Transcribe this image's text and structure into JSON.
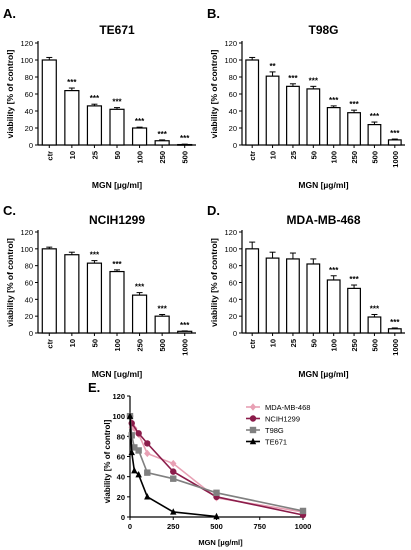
{
  "panels": [
    {
      "letter": "A.",
      "title": "TE671",
      "type": "bar",
      "ylabel": "viability [% of control]",
      "xlabel": "MGN [µg/ml]",
      "ylim": [
        0,
        120
      ],
      "yticks": [
        0,
        20,
        40,
        60,
        80,
        100,
        120
      ],
      "categories": [
        "ctr",
        "10",
        "25",
        "50",
        "100",
        "250",
        "500"
      ],
      "values": [
        100,
        64,
        46,
        42,
        20,
        5,
        0.5
      ],
      "errors": [
        3,
        3,
        2,
        2,
        1,
        1,
        0.5
      ],
      "significance": [
        "",
        "***",
        "***",
        "***",
        "***",
        "***",
        "***"
      ]
    },
    {
      "letter": "B.",
      "title": "T98G",
      "type": "bar",
      "ylabel": "viability [% of control]",
      "xlabel": "MGN [µg/ml]",
      "ylim": [
        0,
        120
      ],
      "yticks": [
        0,
        20,
        40,
        60,
        80,
        100,
        120
      ],
      "categories": [
        "ctr",
        "10",
        "25",
        "50",
        "100",
        "250",
        "500",
        "1000"
      ],
      "values": [
        100,
        81,
        69,
        66,
        44,
        38,
        24,
        6
      ],
      "errors": [
        3,
        5,
        3,
        3,
        2,
        3,
        3,
        1
      ],
      "significance": [
        "",
        "**",
        "***",
        "***",
        "***",
        "***",
        "***",
        "***"
      ]
    },
    {
      "letter": "C.",
      "title": "NCIH1299",
      "type": "bar",
      "ylabel": "viability [% of control]",
      "xlabel": "MGN [ug/ml]",
      "ylim": [
        0,
        120
      ],
      "yticks": [
        0,
        20,
        40,
        60,
        80,
        100,
        120
      ],
      "categories": [
        "ctr",
        "10",
        "50",
        "100",
        "250",
        "500",
        "1000"
      ],
      "values": [
        100,
        93,
        83,
        73,
        45,
        20,
        2
      ],
      "errors": [
        2,
        3,
        3,
        2,
        3,
        2,
        0.5
      ],
      "significance": [
        "",
        "",
        "***",
        "***",
        "***",
        "***",
        "***"
      ]
    },
    {
      "letter": "D.",
      "title": "MDA-MB-468",
      "type": "bar",
      "ylabel": "viability [% of control]",
      "xlabel": "MGN [µg/ml]",
      "ylim": [
        0,
        120
      ],
      "yticks": [
        0,
        20,
        40,
        60,
        80,
        100,
        120
      ],
      "categories": [
        "ctr",
        "10",
        "25",
        "50",
        "100",
        "250",
        "500",
        "1000"
      ],
      "values": [
        100,
        89,
        88,
        82,
        63,
        53,
        19,
        5
      ],
      "errors": [
        8,
        7,
        7,
        6,
        5,
        4,
        3,
        1
      ],
      "significance": [
        "",
        "",
        "",
        "",
        "***",
        "***",
        "***",
        "***"
      ]
    }
  ],
  "line_panel": {
    "letter": "E.",
    "ylabel": "viability [% of control]",
    "xlabel": "MGN [µg/ml]",
    "ylim": [
      0,
      120
    ],
    "xlim": [
      0,
      1000
    ],
    "yticks": [
      0,
      20,
      40,
      60,
      80,
      100,
      120
    ],
    "xticks": [
      0,
      250,
      500,
      750,
      1000
    ],
    "legend_position": "top-right"
  },
  "chart_data": [
    {
      "type": "bar",
      "title": "TE671",
      "xlabel": "MGN [µg/ml]",
      "ylabel": "viability [% of control]",
      "categories": [
        "ctr",
        "10",
        "25",
        "50",
        "100",
        "250",
        "500"
      ],
      "values": [
        100,
        64,
        46,
        42,
        20,
        5,
        0.5
      ],
      "ylim": [
        0,
        120
      ]
    },
    {
      "type": "bar",
      "title": "T98G",
      "xlabel": "MGN [µg/ml]",
      "ylabel": "viability [% of control]",
      "categories": [
        "ctr",
        "10",
        "25",
        "50",
        "100",
        "250",
        "500",
        "1000"
      ],
      "values": [
        100,
        81,
        69,
        66,
        44,
        38,
        24,
        6
      ],
      "ylim": [
        0,
        120
      ]
    },
    {
      "type": "bar",
      "title": "NCIH1299",
      "xlabel": "MGN [ug/ml]",
      "ylabel": "viability [% of control]",
      "categories": [
        "ctr",
        "10",
        "50",
        "100",
        "250",
        "500",
        "1000"
      ],
      "values": [
        100,
        93,
        83,
        73,
        45,
        20,
        2
      ],
      "ylim": [
        0,
        120
      ]
    },
    {
      "type": "bar",
      "title": "MDA-MB-468",
      "xlabel": "MGN [µg/ml]",
      "ylabel": "viability [% of control]",
      "categories": [
        "ctr",
        "10",
        "25",
        "50",
        "100",
        "250",
        "500",
        "1000"
      ],
      "values": [
        100,
        89,
        88,
        82,
        63,
        53,
        19,
        5
      ],
      "ylim": [
        0,
        120
      ]
    },
    {
      "type": "line",
      "xlabel": "MGN [µg/ml]",
      "ylabel": "viability [% of control]",
      "xlim": [
        0,
        1000
      ],
      "ylim": [
        0,
        120
      ],
      "series": [
        {
          "name": "MDA-MB-468",
          "color": "#e8a0b4",
          "marker": "diamond",
          "x": [
            0,
            10,
            25,
            50,
            100,
            250,
            500,
            1000
          ],
          "y": [
            100,
            89,
            88,
            82,
            63,
            53,
            19,
            5
          ]
        },
        {
          "name": "NCIH1299",
          "color": "#8b1c4a",
          "marker": "circle",
          "x": [
            0,
            10,
            50,
            100,
            250,
            500,
            1000
          ],
          "y": [
            100,
            93,
            83,
            73,
            45,
            20,
            2
          ]
        },
        {
          "name": "T98G",
          "color": "#808080",
          "marker": "square",
          "x": [
            0,
            10,
            25,
            50,
            100,
            250,
            500,
            1000
          ],
          "y": [
            100,
            81,
            69,
            66,
            44,
            38,
            24,
            6
          ]
        },
        {
          "name": "TE671",
          "color": "#000000",
          "marker": "triangle",
          "x": [
            0,
            10,
            25,
            50,
            100,
            250,
            500
          ],
          "y": [
            100,
            64,
            46,
            42,
            20,
            5,
            0.5
          ]
        }
      ]
    }
  ]
}
